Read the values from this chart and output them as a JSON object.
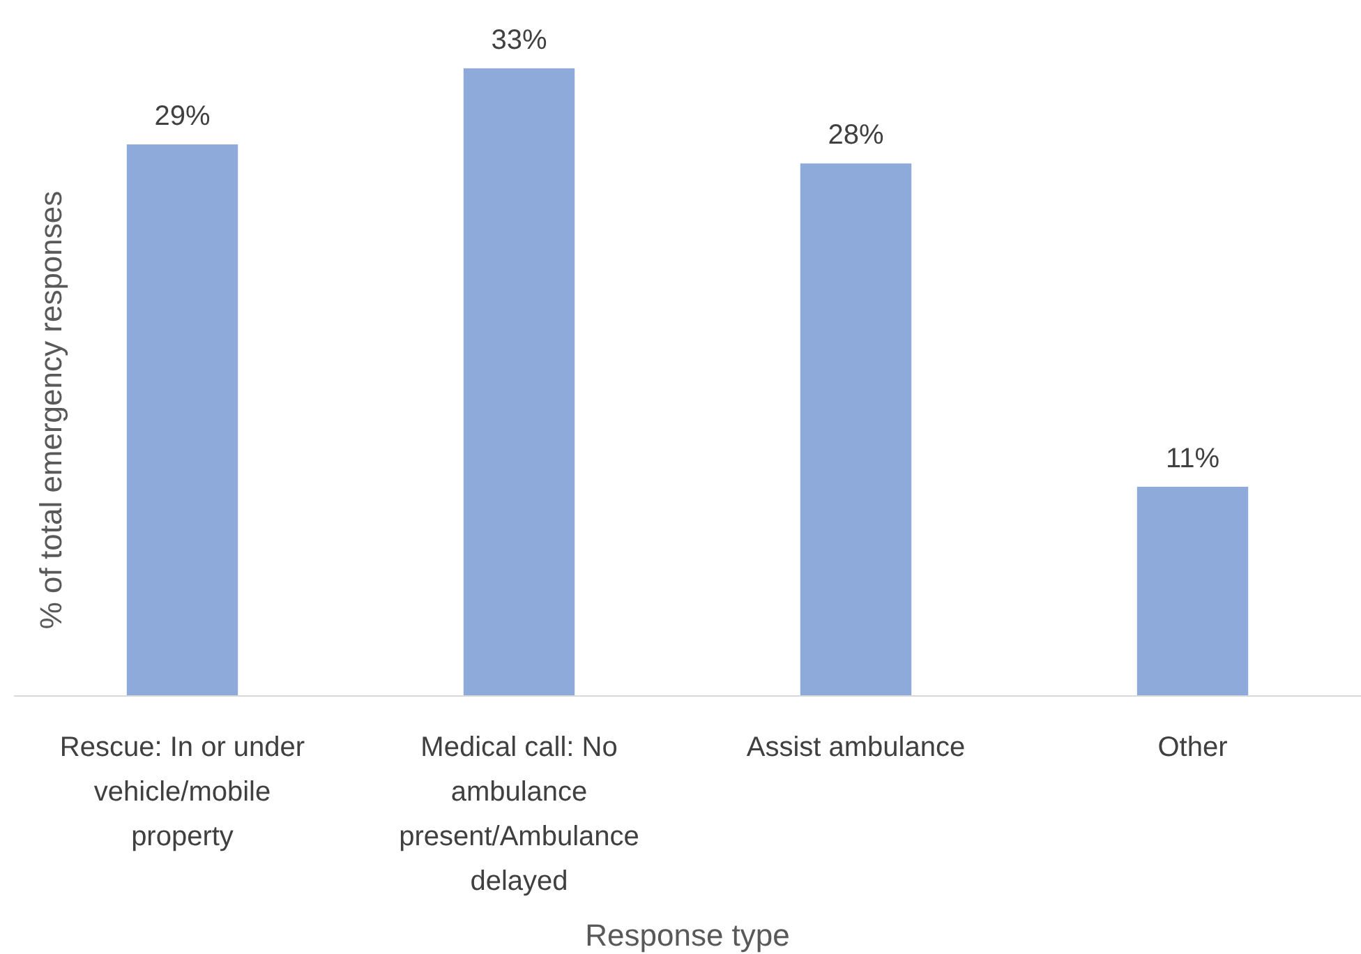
{
  "chart_data": {
    "type": "bar",
    "categories": [
      "Rescue: In or under vehicle/mobile property",
      "Medical call: No ambulance present/Ambulance delayed",
      "Assist ambulance",
      "Other"
    ],
    "values": [
      29,
      33,
      28,
      11
    ],
    "value_labels": [
      "29%",
      "33%",
      "28%",
      "11%"
    ],
    "color": "#8eaadb",
    "xlabel": "Response type",
    "ylabel": "% of total emergency responses"
  }
}
